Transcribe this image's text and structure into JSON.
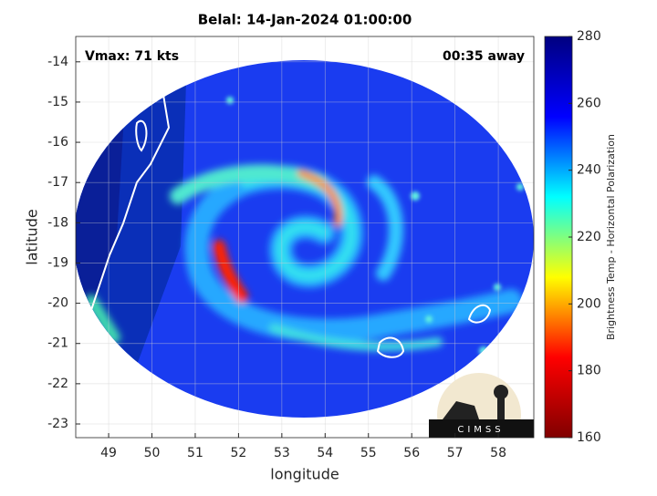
{
  "chart_data": {
    "type": "map",
    "title": "Belal: 14-Jan-2024 01:00:00",
    "x_label": "longitude",
    "y_label": "latitude",
    "xlim": [
      48.24,
      58.82
    ],
    "ylim": [
      -23.34,
      -13.37
    ],
    "xticks": [
      49,
      50,
      51,
      52,
      53,
      54,
      55,
      56,
      57,
      58
    ],
    "yticks": [
      -23,
      -22,
      -21,
      -20,
      -19,
      -18,
      -17,
      -16,
      -15,
      -14
    ],
    "grid": true,
    "annotations": [
      "Vmax: 71 kts",
      "00:35 away"
    ],
    "logo": "CIMSS",
    "colorbar": {
      "label": "Brightness Temp - Horizontal Polarization",
      "lim": [
        160,
        280
      ],
      "ticks": [
        160,
        180,
        200,
        220,
        240,
        260,
        280
      ],
      "colors": [
        "#800000",
        "#ff0000",
        "#ffff00",
        "#00ffff",
        "#0000ff",
        "#000080"
      ]
    }
  }
}
